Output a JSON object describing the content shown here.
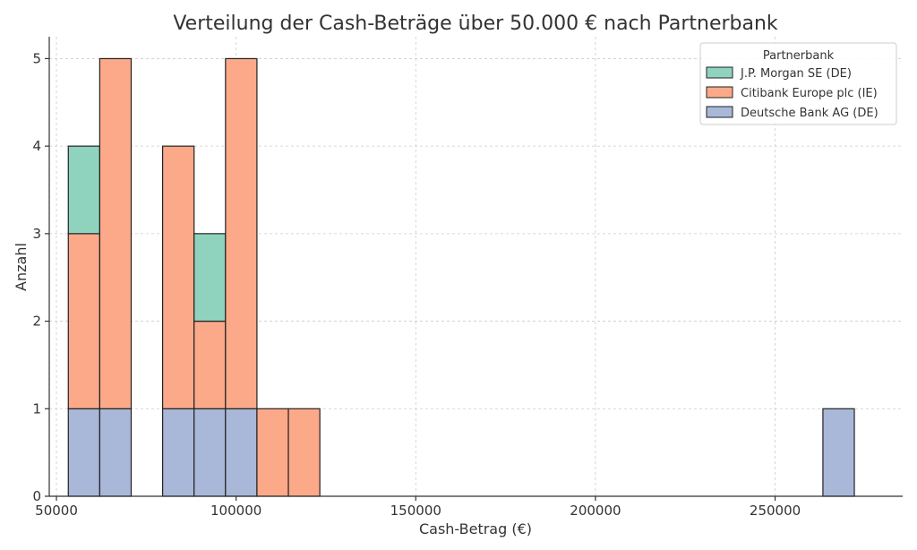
{
  "chart_data": {
    "type": "bar",
    "stacked": true,
    "title": "Verteilung der Cash-Beträge über 50.000 € nach Partnerbank",
    "xlabel": "Cash-Betrag (€)",
    "ylabel": "Anzahl",
    "xlim": [
      48000,
      285500
    ],
    "ylim": [
      0,
      5.25
    ],
    "xticks": [
      50000,
      100000,
      150000,
      200000,
      250000
    ],
    "yticks": [
      0,
      1,
      2,
      3,
      4,
      5
    ],
    "grid": true,
    "bin_width": 8750,
    "bin_edges": [
      53300,
      62050,
      70800,
      79550,
      88300,
      97050,
      105800,
      114550,
      123300,
      132050,
      140800,
      149550,
      158300,
      167050,
      175800,
      184550,
      193300,
      202050,
      210800,
      219550,
      228300,
      237050,
      245800,
      254550,
      263300,
      272050
    ],
    "legend": {
      "title": "Partnerbank",
      "position": "top-right"
    },
    "series": [
      {
        "name": "Deutsche Bank AG (DE)",
        "color": "#a9b7d8",
        "counts": [
          1,
          1,
          0,
          1,
          1,
          1,
          0,
          0,
          0,
          0,
          0,
          0,
          0,
          0,
          0,
          0,
          0,
          0,
          0,
          0,
          0,
          0,
          0,
          0,
          1
        ]
      },
      {
        "name": "Citibank Europe plc (IE)",
        "color": "#fca98a",
        "counts": [
          2,
          4,
          0,
          3,
          1,
          4,
          1,
          1,
          0,
          0,
          0,
          0,
          0,
          0,
          0,
          0,
          0,
          0,
          0,
          0,
          0,
          0,
          0,
          0,
          0
        ]
      },
      {
        "name": "J.P. Morgan SE (DE)",
        "color": "#8fd3be",
        "counts": [
          1,
          0,
          0,
          0,
          1,
          0,
          0,
          0,
          0,
          0,
          0,
          0,
          0,
          0,
          0,
          0,
          0,
          0,
          0,
          0,
          0,
          0,
          0,
          0,
          0
        ]
      }
    ],
    "legend_order": [
      "J.P. Morgan SE (DE)",
      "Citibank Europe plc (IE)",
      "Deutsche Bank AG (DE)"
    ]
  }
}
